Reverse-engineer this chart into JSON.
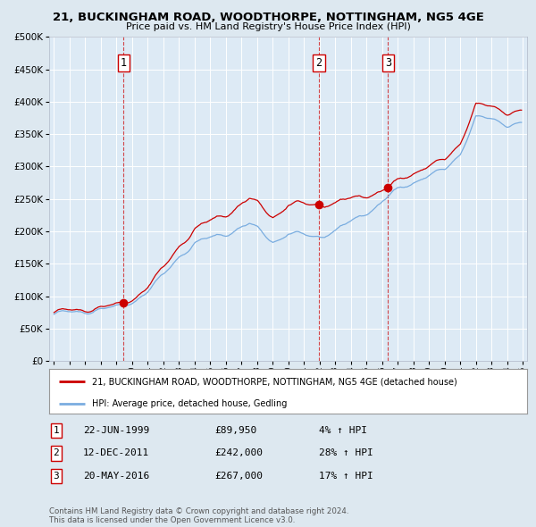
{
  "title": "21, BUCKINGHAM ROAD, WOODTHORPE, NOTTINGHAM, NG5 4GE",
  "subtitle": "Price paid vs. HM Land Registry's House Price Index (HPI)",
  "legend_line1": "21, BUCKINGHAM ROAD, WOODTHORPE, NOTTINGHAM, NG5 4GE (detached house)",
  "legend_line2": "HPI: Average price, detached house, Gedling",
  "transactions": [
    {
      "label": "1",
      "date_year": 1999.46,
      "price": 89950,
      "hpi_pct": "4% ↑ HPI",
      "date_str": "22-JUN-1999",
      "price_str": "£89,950"
    },
    {
      "label": "2",
      "date_year": 2011.95,
      "price": 242000,
      "hpi_pct": "28% ↑ HPI",
      "date_str": "12-DEC-2011",
      "price_str": "£242,000"
    },
    {
      "label": "3",
      "date_year": 2016.38,
      "price": 267000,
      "hpi_pct": "17% ↑ HPI",
      "date_str": "20-MAY-2016",
      "price_str": "£267,000"
    }
  ],
  "red_line_color": "#cc0000",
  "blue_line_color": "#7aade0",
  "dot_color": "#cc0000",
  "vline_color": "#cc0000",
  "background_color": "#dde8f0",
  "plot_bg_color": "#ddeaf5",
  "footer_text": "Contains HM Land Registry data © Crown copyright and database right 2024.\nThis data is licensed under the Open Government Licence v3.0.",
  "ylim": [
    0,
    500000
  ],
  "yticks": [
    0,
    50000,
    100000,
    150000,
    200000,
    250000,
    300000,
    350000,
    400000,
    450000,
    500000
  ],
  "xstart_year": 1994.7,
  "xend_year": 2025.3
}
